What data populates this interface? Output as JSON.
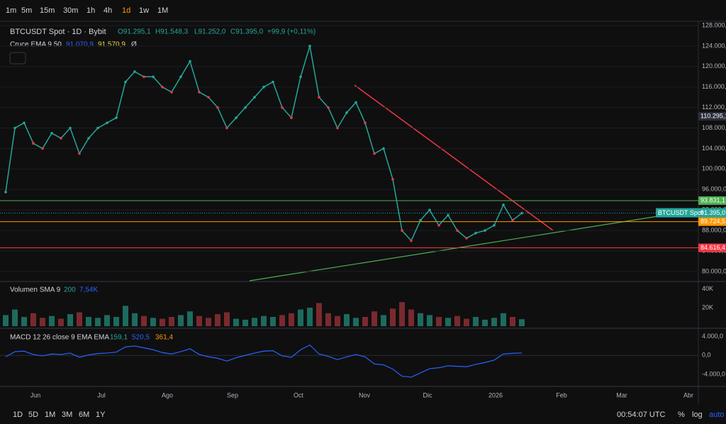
{
  "toolbar": {
    "timeframes": [
      "1m",
      "5m",
      "15m",
      "30m",
      "1h",
      "4h",
      "1d",
      "1w",
      "1M"
    ]
  },
  "legend": {
    "symbol": "BTCUSDT Spot · 1D · Bybit",
    "open": "O91.295,1",
    "high": "H91.548,3",
    "low": "L91.252,0",
    "close": "C91.395,0",
    "change": "+99,9 (+0,11%)",
    "ema_name": "Cruce EMA 9 50",
    "ema_fast": "91.070,9",
    "ema_slow": "91.570,9",
    "ema_extra": "Ø",
    "vol_name": "Volumen SMA 9",
    "vol_period": "200",
    "vol_value": "7,54K",
    "macd_name": "MACD 12 26 close 9 EMA EMA",
    "macd_hist": "159,1",
    "macd_line": "520,5",
    "macd_signal": "361,4"
  },
  "chart_data": {
    "type": "line",
    "name": "BTCUSDT Spot",
    "color": "#26a69a",
    "values": [
      95500,
      108000,
      109000,
      105000,
      104000,
      107000,
      106000,
      108000,
      103000,
      106000,
      108000,
      109000,
      110000,
      117000,
      119000,
      118000,
      118000,
      116000,
      115000,
      118000,
      121000,
      115000,
      114000,
      112000,
      108000,
      110000,
      112000,
      114000,
      116000,
      117000,
      112000,
      110000,
      118000,
      124000,
      114000,
      112000,
      108000,
      111000,
      113000,
      109000,
      103000,
      104000,
      98000,
      88000,
      86000,
      90000,
      92000,
      89000,
      91000,
      88000,
      86500,
      87500,
      88000,
      89000,
      93000,
      90000,
      91395
    ],
    "ylim": [
      78050,
      128830
    ],
    "yticks": [
      {
        "value": 80000,
        "label": "80.000,0"
      },
      {
        "value": 84000,
        "label": "84.000,0"
      },
      {
        "value": 88000,
        "label": "88.000,0"
      },
      {
        "value": 92000,
        "label": "92.000,0"
      },
      {
        "value": 96000,
        "label": "96.000,0"
      },
      {
        "value": 100000,
        "label": "100.000,0"
      },
      {
        "value": 104000,
        "label": "104.000,0"
      },
      {
        "value": 108000,
        "label": "108.000,0"
      },
      {
        "value": 112000,
        "label": "112.000,0"
      },
      {
        "value": 116000,
        "label": "116.000,0"
      },
      {
        "value": 120000,
        "label": "120.000,0"
      },
      {
        "value": 124000,
        "label": "124.000,0"
      },
      {
        "value": 128000,
        "label": "128.000,0"
      }
    ],
    "levels": [
      {
        "value": 110295.1,
        "label": "110.295,1",
        "color": "#2a2e39"
      },
      {
        "value": 93831.1,
        "label": "93.831,1",
        "color": "#4caf50"
      },
      {
        "value": 89724.5,
        "label": "89.724,5",
        "color": "#ff9800"
      },
      {
        "value": 84616.4,
        "label": "84.616,4",
        "color": "#f23645"
      }
    ],
    "last": {
      "value": 91395,
      "label": "91.395,0",
      "tag": "BTCUSDT Spot"
    },
    "x_labels": [
      "Jun",
      "Jul",
      "Ago",
      "Sep",
      "Oct",
      "Nov",
      "Dic",
      "2026",
      "Feb",
      "Mar",
      "Abr"
    ],
    "volume": {
      "values": [
        12,
        18,
        10,
        14,
        9,
        11,
        8,
        13,
        15,
        10,
        9,
        12,
        10,
        22,
        14,
        11,
        9,
        8,
        10,
        12,
        16,
        11,
        9,
        13,
        15,
        8,
        7,
        9,
        11,
        10,
        12,
        14,
        18,
        20,
        25,
        14,
        11,
        13,
        9,
        10,
        16,
        12,
        19,
        26,
        18,
        14,
        12,
        10,
        9,
        11,
        8,
        10,
        7,
        9,
        14,
        10,
        7.54
      ],
      "ylim": [
        -1.5,
        46
      ],
      "yticks": [
        {
          "value": 20,
          "label": "20K"
        },
        {
          "value": 40,
          "label": "40K"
        }
      ]
    },
    "macd": {
      "color": "#2962ff",
      "values": [
        -300,
        800,
        900,
        200,
        -100,
        300,
        200,
        500,
        -400,
        100,
        400,
        500,
        700,
        1800,
        2000,
        1600,
        1200,
        600,
        300,
        800,
        1400,
        200,
        -300,
        -600,
        -1200,
        -500,
        0,
        500,
        900,
        1000,
        -100,
        -400,
        1200,
        2200,
        300,
        -200,
        -900,
        -300,
        200,
        -300,
        -1800,
        -2000,
        -2900,
        -4400,
        -4600,
        -3700,
        -2800,
        -2600,
        -2200,
        -2300,
        -2400,
        -1900,
        -1500,
        -1000,
        300,
        450,
        520.5
      ],
      "ylim": [
        -6560,
        5440
      ],
      "yticks": [
        {
          "value": 4000,
          "label": "4.000,0"
        },
        {
          "value": 0,
          "label": "0,0"
        },
        {
          "value": -4000,
          "label": "-4.000,0"
        }
      ]
    }
  },
  "bottom": {
    "ranges": [
      "1D",
      "5D",
      "1M",
      "3M",
      "6M",
      "1Y"
    ],
    "clock": "00:54:07 UTC",
    "percent": "%",
    "log": "log",
    "auto": "auto"
  }
}
